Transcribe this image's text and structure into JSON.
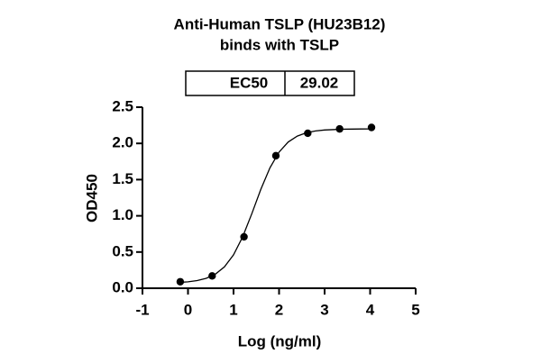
{
  "chart_data": {
    "type": "scatter",
    "title": [
      "Anti-Human TSLP (HU23B12)",
      "binds with TSLP"
    ],
    "ec50_table": {
      "label": "EC50",
      "value": 29.02
    },
    "x_label": "Log (ng/ml)",
    "y_label": "OD450",
    "x": [
      -0.17,
      0.53,
      1.23,
      1.93,
      2.63,
      3.33,
      4.03
    ],
    "values": [
      0.09,
      0.17,
      0.71,
      1.83,
      2.14,
      2.2,
      2.22
    ],
    "color": "#000000",
    "fit": {
      "x": [
        -0.2,
        0,
        0.2,
        0.4,
        0.6,
        0.8,
        1.0,
        1.2,
        1.4,
        1.6,
        1.8,
        2.0,
        2.2,
        2.4,
        2.6,
        2.8,
        3.0,
        3.4,
        3.8,
        4.05
      ],
      "values": [
        0.08,
        0.089,
        0.106,
        0.137,
        0.194,
        0.295,
        0.461,
        0.709,
        1.027,
        1.366,
        1.663,
        1.88,
        2.019,
        2.101,
        2.147,
        2.172,
        2.185,
        2.196,
        2.199,
        2.2
      ]
    },
    "xlim": [
      -1,
      5
    ],
    "xticks": [
      -1,
      0,
      1,
      2,
      3,
      4,
      5
    ],
    "ylim": [
      0,
      2.5
    ],
    "yticks": [
      {
        "value": 0,
        "label": "0.0"
      },
      0.5,
      {
        "value": 1,
        "label": "1.0"
      },
      1.5,
      {
        "value": 2,
        "label": "2.0"
      },
      2.5
    ]
  }
}
